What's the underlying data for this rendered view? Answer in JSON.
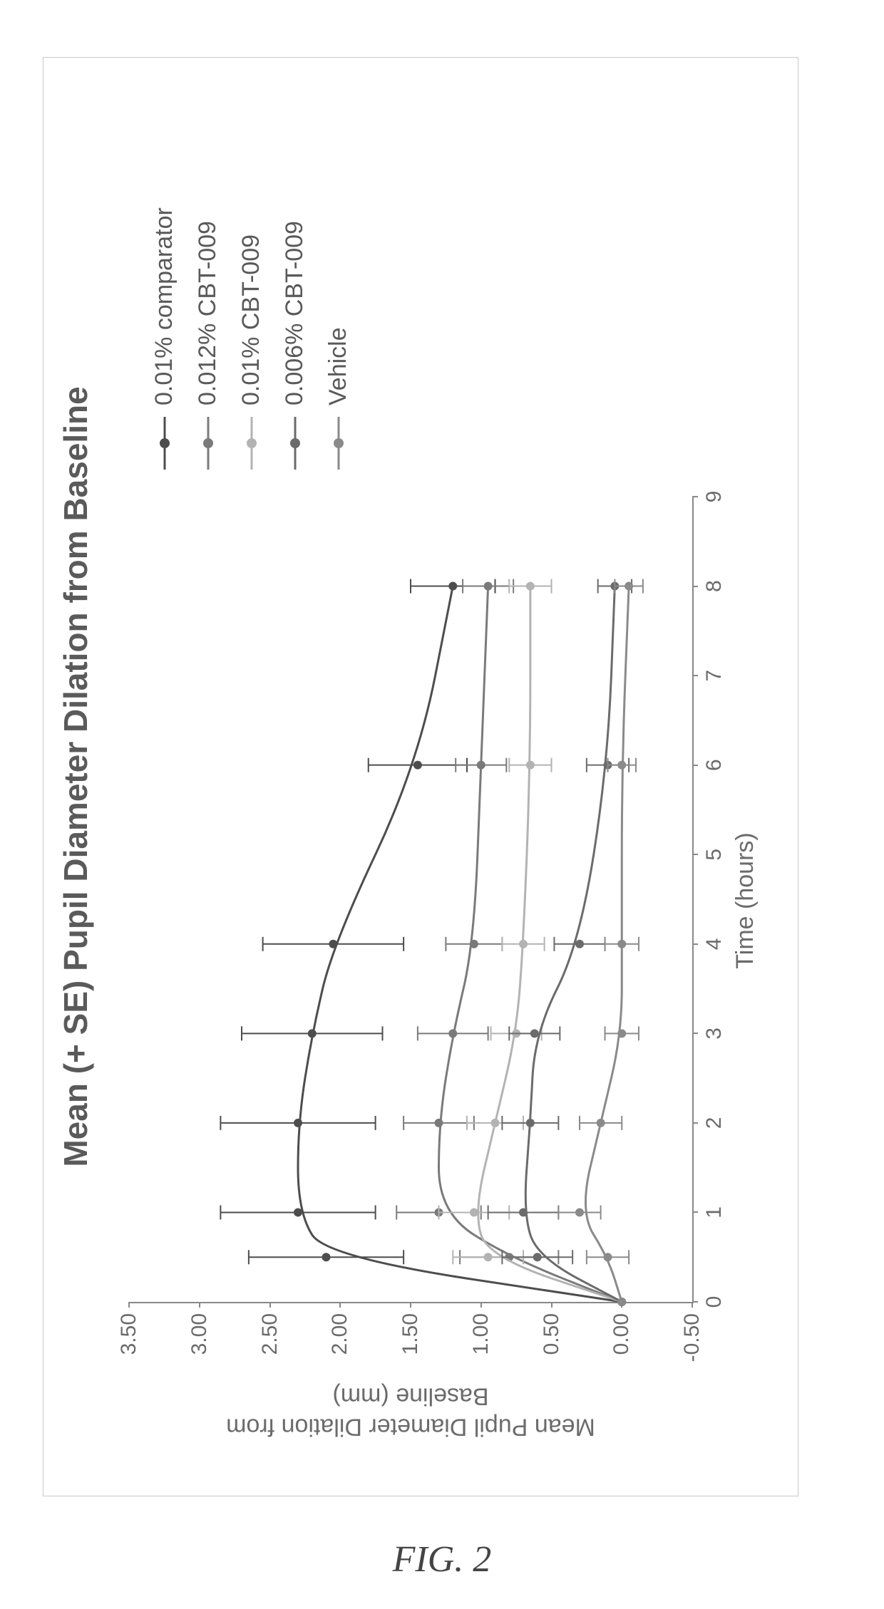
{
  "figure_caption": "FIG. 2",
  "chart": {
    "type": "line",
    "title": "Mean (+ SE) Pupil Diameter Dilation from Baseline",
    "title_fontsize": 46,
    "title_fontweight": "bold",
    "x_label": "Time (hours)",
    "y_label_line1": "Mean Pupil Diameter Dilation from",
    "y_label_line2": "Baseline (mm)",
    "axis_label_fontsize": 34,
    "tick_fontsize": 30,
    "background_color": "#ffffff",
    "border_color": "#c9c9c9",
    "axis_color": "#888888",
    "text_color": "#5a5a5a",
    "tick_color": "#6b6b6b",
    "x_ticks": [
      0,
      1,
      2,
      3,
      4,
      5,
      6,
      7,
      8,
      9
    ],
    "x_tick_labels": [
      "0",
      "1",
      "2",
      "3",
      "4",
      "5",
      "6",
      "7",
      "8",
      "9"
    ],
    "xlim": [
      0,
      9
    ],
    "y_ticks": [
      -0.5,
      0,
      0.5,
      1.0,
      1.5,
      2.0,
      2.5,
      3.0,
      3.5
    ],
    "y_tick_labels": [
      "-0.50",
      "0.00",
      "0.50",
      "1.00",
      "1.50",
      "2.00",
      "2.50",
      "3.00",
      "3.50"
    ],
    "ylim": [
      -0.5,
      3.5
    ],
    "marker": "circle",
    "marker_radius": 6,
    "line_width": 3,
    "errorbar_width": 2,
    "errorbar_cap": 10,
    "series": [
      {
        "name": "0.01% comparator",
        "color": "#4d4d4d",
        "x": [
          0,
          0.5,
          1,
          2,
          3,
          4,
          6,
          8
        ],
        "y": [
          0.0,
          2.1,
          2.3,
          2.3,
          2.2,
          2.05,
          1.45,
          1.2
        ],
        "se": [
          0.0,
          0.55,
          0.55,
          0.55,
          0.5,
          0.5,
          0.35,
          0.3
        ]
      },
      {
        "name": "0.012% CBT-009",
        "color": "#7a7a7a",
        "x": [
          0,
          0.5,
          1,
          2,
          3,
          4,
          6,
          8
        ],
        "y": [
          0.0,
          0.8,
          1.3,
          1.3,
          1.2,
          1.05,
          1.0,
          0.95
        ],
        "se": [
          0.0,
          0.35,
          0.3,
          0.25,
          0.25,
          0.2,
          0.18,
          0.18
        ]
      },
      {
        "name": "0.01% CBT-009",
        "color": "#b3b3b3",
        "x": [
          0,
          0.5,
          1,
          2,
          3,
          4,
          6,
          8
        ],
        "y": [
          0.0,
          0.95,
          1.05,
          0.9,
          0.75,
          0.7,
          0.65,
          0.65
        ],
        "se": [
          0.0,
          0.25,
          0.25,
          0.2,
          0.18,
          0.15,
          0.15,
          0.15
        ]
      },
      {
        "name": "0.006% CBT-009",
        "color": "#6b6b6b",
        "x": [
          0,
          0.5,
          1,
          2,
          3,
          4,
          6,
          8
        ],
        "y": [
          0.0,
          0.6,
          0.7,
          0.65,
          0.62,
          0.3,
          0.1,
          0.05
        ],
        "se": [
          0.0,
          0.25,
          0.25,
          0.2,
          0.18,
          0.18,
          0.15,
          0.12
        ]
      },
      {
        "name": "Vehicle",
        "color": "#8a8a8a",
        "x": [
          0,
          0.5,
          1,
          2,
          3,
          4,
          6,
          8
        ],
        "y": [
          0.0,
          0.1,
          0.3,
          0.15,
          0.0,
          0.0,
          0.0,
          -0.05
        ],
        "se": [
          0.0,
          0.15,
          0.15,
          0.15,
          0.12,
          0.12,
          0.1,
          0.1
        ]
      }
    ]
  }
}
